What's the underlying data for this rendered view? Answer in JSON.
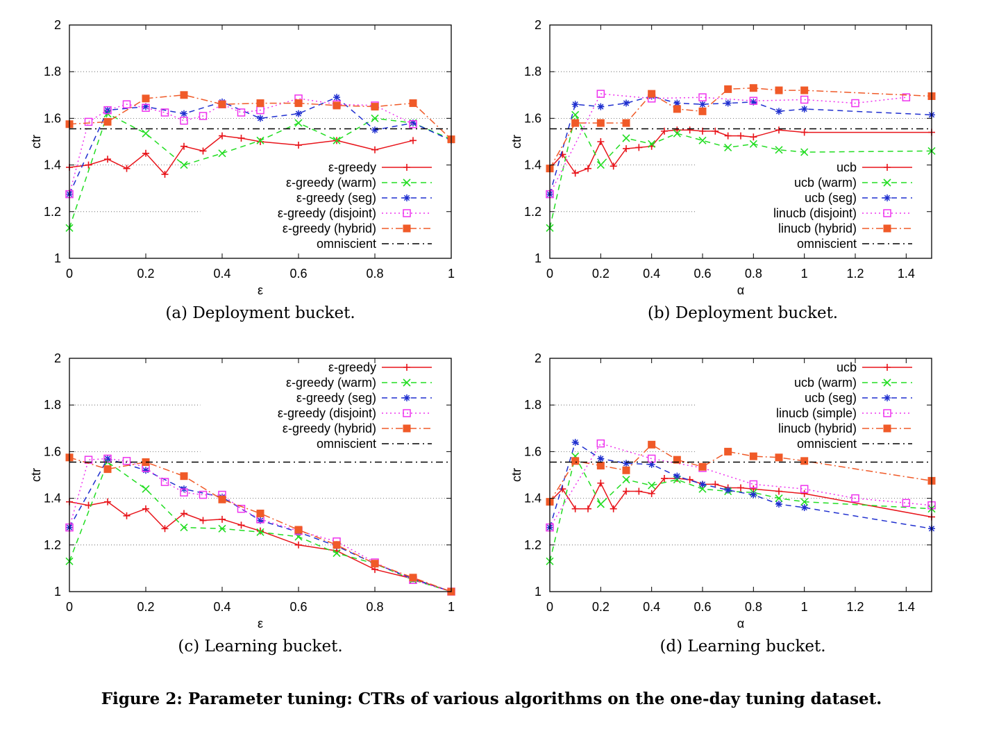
{
  "figure_caption": "Figure 2: Parameter tuning: CTRs of various algorithms on the one-day tuning dataset.",
  "colors": {
    "red": "#e8141a",
    "green": "#22dd22",
    "blue": "#1f2fcf",
    "magenta": "#ee33ee",
    "orange": "#f05a28",
    "black": "#000000",
    "grid": "#555555"
  },
  "chart_data": [
    {
      "type": "line",
      "caption": "(a) Deployment bucket.",
      "xlabel": "ε",
      "ylabel": "ctr",
      "xlim": [
        0,
        1
      ],
      "ylim": [
        1,
        2
      ],
      "xticks": [
        "0",
        "0.2",
        "0.4",
        "0.6",
        "0.8",
        "1"
      ],
      "yticks": [
        "1",
        "1.2",
        "1.4",
        "1.6",
        "1.8",
        "2"
      ],
      "grid": "horizontal dotted",
      "legend_position": "bottom-right",
      "series": [
        {
          "name": "ε-greedy",
          "color": "red",
          "dash": "solid",
          "marker": "plus",
          "x": [
            0,
            0.05,
            0.1,
            0.15,
            0.2,
            0.25,
            0.3,
            0.35,
            0.4,
            0.45,
            0.5,
            0.6,
            0.7,
            0.8,
            0.9
          ],
          "y": [
            1.39,
            1.4,
            1.425,
            1.385,
            1.45,
            1.36,
            1.48,
            1.46,
            1.525,
            1.515,
            1.5,
            1.485,
            1.505,
            1.465,
            1.505
          ]
        },
        {
          "name": "ε-greedy (warm)",
          "color": "green",
          "dash": "dashed",
          "marker": "x",
          "x": [
            0,
            0.1,
            0.2,
            0.3,
            0.4,
            0.5,
            0.6,
            0.7,
            0.8,
            0.9,
            1
          ],
          "y": [
            1.13,
            1.62,
            1.535,
            1.4,
            1.45,
            1.505,
            1.58,
            1.505,
            1.6,
            1.58,
            1.51
          ]
        },
        {
          "name": "ε-greedy (seg)",
          "color": "blue",
          "dash": "dashed",
          "marker": "asterisk",
          "x": [
            0,
            0.1,
            0.2,
            0.3,
            0.4,
            0.5,
            0.6,
            0.7,
            0.8,
            0.9,
            1
          ],
          "y": [
            1.275,
            1.635,
            1.65,
            1.62,
            1.67,
            1.6,
            1.62,
            1.69,
            1.55,
            1.58,
            1.505
          ]
        },
        {
          "name": "ε-greedy (disjoint)",
          "color": "magenta",
          "dash": "dotted",
          "marker": "square-open",
          "x": [
            0,
            0.05,
            0.1,
            0.15,
            0.2,
            0.25,
            0.3,
            0.35,
            0.4,
            0.45,
            0.5,
            0.6,
            0.7,
            0.8,
            0.9
          ],
          "y": [
            1.275,
            1.585,
            1.635,
            1.66,
            1.645,
            1.625,
            1.59,
            1.61,
            1.66,
            1.625,
            1.635,
            1.685,
            1.66,
            1.655,
            1.575
          ]
        },
        {
          "name": "ε-greedy (hybrid)",
          "color": "orange",
          "dash": "dashdot",
          "marker": "square-filled",
          "x": [
            0,
            0.1,
            0.2,
            0.3,
            0.4,
            0.5,
            0.6,
            0.7,
            0.8,
            0.9,
            1
          ],
          "y": [
            1.575,
            1.585,
            1.685,
            1.7,
            1.66,
            1.665,
            1.665,
            1.655,
            1.65,
            1.665,
            1.51
          ]
        },
        {
          "name": "omniscient",
          "color": "black",
          "dash": "dashdot-black",
          "marker": "none",
          "x": [
            0,
            1
          ],
          "y": [
            1.555,
            1.555
          ]
        }
      ]
    },
    {
      "type": "line",
      "caption": "(b) Deployment bucket.",
      "xlabel": "α",
      "ylabel": "ctr",
      "xlim": [
        0,
        1.5
      ],
      "ylim": [
        1,
        2
      ],
      "xticks": [
        "0",
        "0.2",
        "0.4",
        "0.6",
        "0.8",
        "1",
        "1.2",
        "1.4"
      ],
      "yticks": [
        "1",
        "1.2",
        "1.4",
        "1.6",
        "1.8",
        "2"
      ],
      "grid": "horizontal dotted",
      "legend_position": "bottom-right",
      "series": [
        {
          "name": "ucb",
          "color": "red",
          "dash": "solid",
          "marker": "plus",
          "x": [
            0,
            0.05,
            0.1,
            0.15,
            0.2,
            0.25,
            0.3,
            0.35,
            0.4,
            0.45,
            0.5,
            0.55,
            0.6,
            0.65,
            0.7,
            0.75,
            0.8,
            0.9,
            1,
            1.5
          ],
          "y": [
            1.385,
            1.445,
            1.365,
            1.385,
            1.5,
            1.395,
            1.47,
            1.475,
            1.48,
            1.545,
            1.55,
            1.55,
            1.545,
            1.545,
            1.525,
            1.525,
            1.52,
            1.55,
            1.54,
            1.54
          ]
        },
        {
          "name": "ucb (warm)",
          "color": "green",
          "dash": "dashed",
          "marker": "x",
          "x": [
            0,
            0.1,
            0.2,
            0.3,
            0.4,
            0.5,
            0.6,
            0.7,
            0.8,
            0.9,
            1,
            1.5
          ],
          "y": [
            1.13,
            1.615,
            1.4,
            1.515,
            1.49,
            1.535,
            1.505,
            1.475,
            1.49,
            1.465,
            1.455,
            1.46
          ]
        },
        {
          "name": "ucb (seg)",
          "color": "blue",
          "dash": "dashed",
          "marker": "asterisk",
          "x": [
            0,
            0.1,
            0.2,
            0.3,
            0.4,
            0.5,
            0.6,
            0.7,
            0.8,
            0.9,
            1,
            1.5
          ],
          "y": [
            1.275,
            1.66,
            1.65,
            1.665,
            1.695,
            1.665,
            1.66,
            1.665,
            1.67,
            1.63,
            1.64,
            1.615
          ]
        },
        {
          "name": "linucb (disjoint)",
          "color": "magenta",
          "dash": "dotted",
          "marker": "square-open",
          "x": [
            0,
            0.2,
            0.4,
            0.6,
            0.8,
            1,
            1.2,
            1.4
          ],
          "y": [
            1.275,
            1.705,
            1.685,
            1.69,
            1.675,
            1.68,
            1.665,
            1.69
          ]
        },
        {
          "name": "linucb (hybrid)",
          "color": "orange",
          "dash": "dashdot",
          "marker": "square-filled",
          "x": [
            0,
            0.1,
            0.2,
            0.3,
            0.4,
            0.5,
            0.6,
            0.7,
            0.8,
            0.9,
            1,
            1.5
          ],
          "y": [
            1.385,
            1.58,
            1.58,
            1.58,
            1.705,
            1.64,
            1.63,
            1.725,
            1.73,
            1.72,
            1.72,
            1.695
          ]
        },
        {
          "name": "omniscient",
          "color": "black",
          "dash": "dashdot-black",
          "marker": "none",
          "x": [
            0,
            1.5
          ],
          "y": [
            1.555,
            1.555
          ]
        }
      ]
    },
    {
      "type": "line",
      "caption": "(c) Learning bucket.",
      "xlabel": "ε",
      "ylabel": "ctr",
      "xlim": [
        0,
        1
      ],
      "ylim": [
        1,
        2
      ],
      "xticks": [
        "0",
        "0.2",
        "0.4",
        "0.6",
        "0.8",
        "1"
      ],
      "yticks": [
        "1",
        "1.2",
        "1.4",
        "1.6",
        "1.8",
        "2"
      ],
      "grid": "horizontal dotted",
      "legend_position": "top-right",
      "series": [
        {
          "name": "ε-greedy",
          "color": "red",
          "dash": "solid",
          "marker": "plus",
          "x": [
            0,
            0.05,
            0.1,
            0.15,
            0.2,
            0.25,
            0.3,
            0.35,
            0.4,
            0.45,
            0.5,
            0.6,
            0.7,
            0.8,
            0.9,
            1
          ],
          "y": [
            1.385,
            1.37,
            1.385,
            1.325,
            1.355,
            1.27,
            1.335,
            1.305,
            1.31,
            1.285,
            1.26,
            1.2,
            1.175,
            1.095,
            1.055,
            1.0
          ]
        },
        {
          "name": "ε-greedy (warm)",
          "color": "green",
          "dash": "dashed",
          "marker": "x",
          "x": [
            0,
            0.1,
            0.2,
            0.3,
            0.4,
            0.5,
            0.6,
            0.7,
            0.8,
            0.9,
            1
          ],
          "y": [
            1.13,
            1.555,
            1.44,
            1.275,
            1.27,
            1.255,
            1.235,
            1.165,
            1.12,
            1.05,
            1.0
          ]
        },
        {
          "name": "ε-greedy (seg)",
          "color": "blue",
          "dash": "dashed",
          "marker": "asterisk",
          "x": [
            0,
            0.1,
            0.2,
            0.3,
            0.4,
            0.5,
            0.6,
            0.7,
            0.8,
            0.9,
            1
          ],
          "y": [
            1.275,
            1.57,
            1.52,
            1.44,
            1.405,
            1.305,
            1.255,
            1.195,
            1.12,
            1.055,
            1.0
          ]
        },
        {
          "name": "ε-greedy (disjoint)",
          "color": "magenta",
          "dash": "dotted",
          "marker": "square-open",
          "x": [
            0,
            0.05,
            0.1,
            0.15,
            0.2,
            0.25,
            0.3,
            0.35,
            0.4,
            0.45,
            0.5,
            0.6,
            0.7,
            0.8,
            0.9,
            1
          ],
          "y": [
            1.275,
            1.565,
            1.57,
            1.56,
            1.53,
            1.47,
            1.425,
            1.415,
            1.415,
            1.355,
            1.31,
            1.26,
            1.215,
            1.125,
            1.05,
            1.0
          ]
        },
        {
          "name": "ε-greedy (hybrid)",
          "color": "orange",
          "dash": "dashdot",
          "marker": "square-filled",
          "x": [
            0,
            0.1,
            0.2,
            0.3,
            0.4,
            0.5,
            0.6,
            0.7,
            0.8,
            0.9,
            1
          ],
          "y": [
            1.575,
            1.525,
            1.555,
            1.495,
            1.395,
            1.335,
            1.265,
            1.2,
            1.12,
            1.06,
            1.0
          ]
        },
        {
          "name": "omniscient",
          "color": "black",
          "dash": "dashdot-black",
          "marker": "none",
          "x": [
            0,
            1
          ],
          "y": [
            1.555,
            1.555
          ]
        }
      ]
    },
    {
      "type": "line",
      "caption": "(d) Learning bucket.",
      "xlabel": "α",
      "ylabel": "ctr",
      "xlim": [
        0,
        1.5
      ],
      "ylim": [
        1,
        2
      ],
      "xticks": [
        "0",
        "0.2",
        "0.4",
        "0.6",
        "0.8",
        "1",
        "1.2",
        "1.4"
      ],
      "yticks": [
        "1",
        "1.2",
        "1.4",
        "1.6",
        "1.8",
        "2"
      ],
      "grid": "horizontal dotted",
      "legend_position": "top-right",
      "series": [
        {
          "name": "ucb",
          "color": "red",
          "dash": "solid",
          "marker": "plus",
          "x": [
            0,
            0.05,
            0.1,
            0.15,
            0.2,
            0.25,
            0.3,
            0.35,
            0.4,
            0.45,
            0.5,
            0.55,
            0.6,
            0.65,
            0.7,
            0.75,
            0.8,
            0.9,
            1,
            1.5
          ],
          "y": [
            1.385,
            1.44,
            1.355,
            1.355,
            1.465,
            1.355,
            1.43,
            1.43,
            1.42,
            1.485,
            1.485,
            1.48,
            1.46,
            1.46,
            1.445,
            1.445,
            1.44,
            1.43,
            1.42,
            1.32
          ]
        },
        {
          "name": "ucb (warm)",
          "color": "green",
          "dash": "dashed",
          "marker": "x",
          "x": [
            0,
            0.1,
            0.2,
            0.3,
            0.4,
            0.5,
            0.6,
            0.7,
            0.8,
            0.9,
            1,
            1.5
          ],
          "y": [
            1.13,
            1.58,
            1.375,
            1.48,
            1.455,
            1.48,
            1.44,
            1.43,
            1.425,
            1.4,
            1.385,
            1.355
          ]
        },
        {
          "name": "ucb (seg)",
          "color": "blue",
          "dash": "dashed",
          "marker": "asterisk",
          "x": [
            0,
            0.1,
            0.2,
            0.3,
            0.4,
            0.5,
            0.6,
            0.7,
            0.8,
            0.9,
            1,
            1.5
          ],
          "y": [
            1.275,
            1.64,
            1.57,
            1.55,
            1.545,
            1.495,
            1.46,
            1.435,
            1.415,
            1.375,
            1.36,
            1.27
          ]
        },
        {
          "name": "linucb (simple)",
          "color": "magenta",
          "dash": "dotted",
          "marker": "square-open",
          "x": [
            0,
            0.2,
            0.4,
            0.6,
            0.8,
            1,
            1.2,
            1.4,
            1.5
          ],
          "y": [
            1.275,
            1.635,
            1.57,
            1.53,
            1.46,
            1.44,
            1.4,
            1.38,
            1.37
          ]
        },
        {
          "name": "linucb (hybrid)",
          "color": "orange",
          "dash": "dashdot",
          "marker": "square-filled",
          "x": [
            0,
            0.1,
            0.2,
            0.3,
            0.4,
            0.5,
            0.6,
            0.7,
            0.8,
            0.9,
            1,
            1.5
          ],
          "y": [
            1.385,
            1.56,
            1.54,
            1.52,
            1.63,
            1.565,
            1.535,
            1.6,
            1.58,
            1.575,
            1.56,
            1.475
          ]
        },
        {
          "name": "omniscient",
          "color": "black",
          "dash": "dashdot-black",
          "marker": "none",
          "x": [
            0,
            1.5
          ],
          "y": [
            1.555,
            1.555
          ]
        }
      ]
    }
  ]
}
